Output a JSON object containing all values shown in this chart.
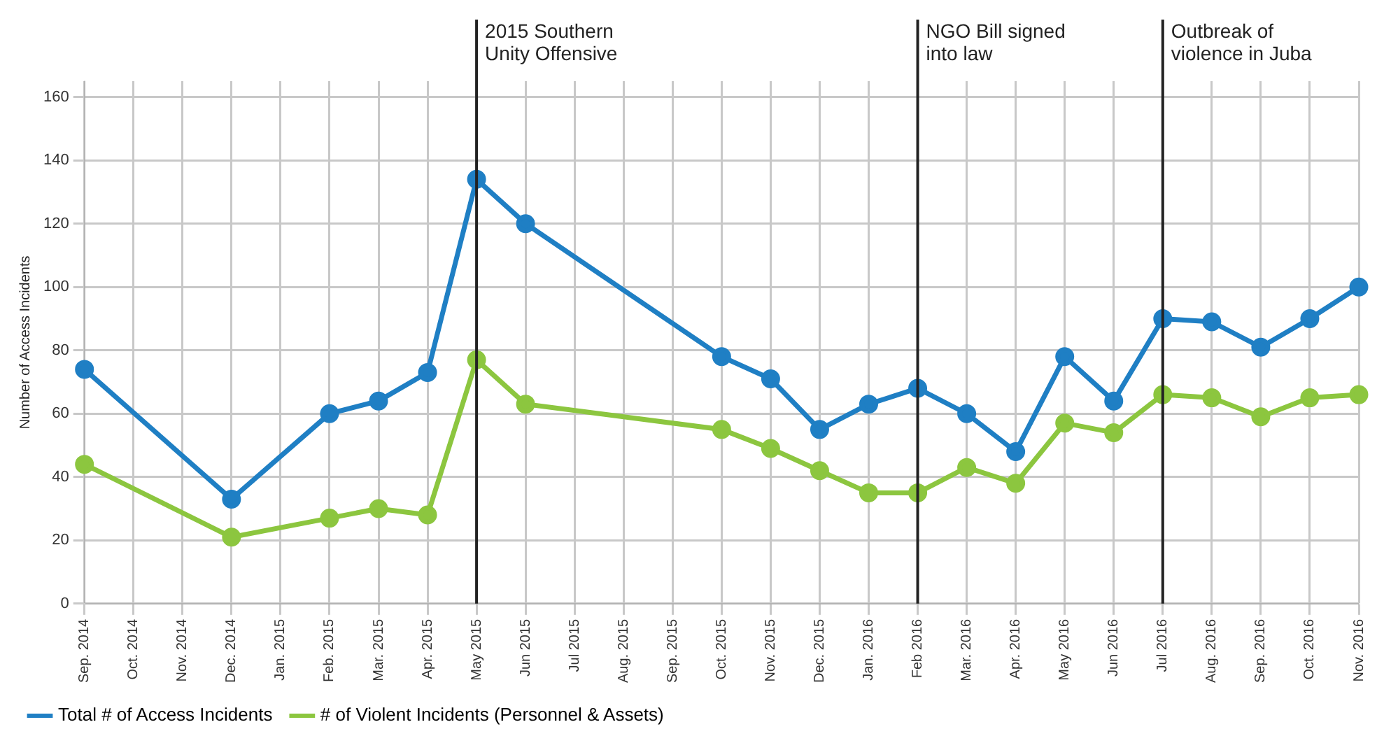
{
  "chart_data": {
    "type": "line",
    "ylabel": "Number of Access Incidents",
    "categories": [
      "Sep. 2014",
      "Oct. 2014",
      "Nov. 2014",
      "Dec. 2014",
      "Jan. 2015",
      "Feb. 2015",
      "Mar. 2015",
      "Apr. 2015",
      "May 2015",
      "Jun 2015",
      "Jul 2015",
      "Aug. 2015",
      "Sep. 2015",
      "Oct. 2015",
      "Nov. 2015",
      "Dec. 2015",
      "Jan. 2016",
      "Feb 2016",
      "Mar. 2016",
      "Apr. 2016",
      "May 2016",
      "Jun 2016",
      "Jul 2016",
      "Aug. 2016",
      "Sep. 2016",
      "Oct. 2016",
      "Nov. 2016"
    ],
    "series": [
      {
        "name": "Total # of Access Incidents",
        "color": "#1f7fc4",
        "values": [
          74,
          null,
          null,
          33,
          null,
          60,
          64,
          73,
          134,
          120,
          null,
          null,
          null,
          78,
          71,
          55,
          63,
          68,
          60,
          48,
          78,
          64,
          90,
          89,
          81,
          90,
          100
        ]
      },
      {
        "name": "# of Violent Incidents (Personnel & Assets)",
        "color": "#8cc63f",
        "values": [
          44,
          null,
          null,
          21,
          null,
          27,
          30,
          28,
          77,
          63,
          null,
          null,
          null,
          55,
          49,
          42,
          35,
          35,
          43,
          38,
          57,
          54,
          66,
          65,
          59,
          65,
          66
        ]
      }
    ],
    "ylim": [
      0,
      165
    ],
    "yticks": [
      0,
      20,
      40,
      60,
      80,
      100,
      120,
      140,
      160
    ],
    "grid": true,
    "legend": "bottom left",
    "marker": "circle",
    "line_style": "solid",
    "ref_lines": [
      {
        "axis": "x",
        "value": "May 2015",
        "label": "2015 Southern Unity Offensive",
        "color": "#222222"
      },
      {
        "axis": "x",
        "value": "Feb 2016",
        "label": "NGO Bill signed into law",
        "color": "#222222"
      },
      {
        "axis": "x",
        "value": "Jul 2016",
        "label": "Outbreak of violence in Juba",
        "color": "#222222"
      }
    ]
  }
}
